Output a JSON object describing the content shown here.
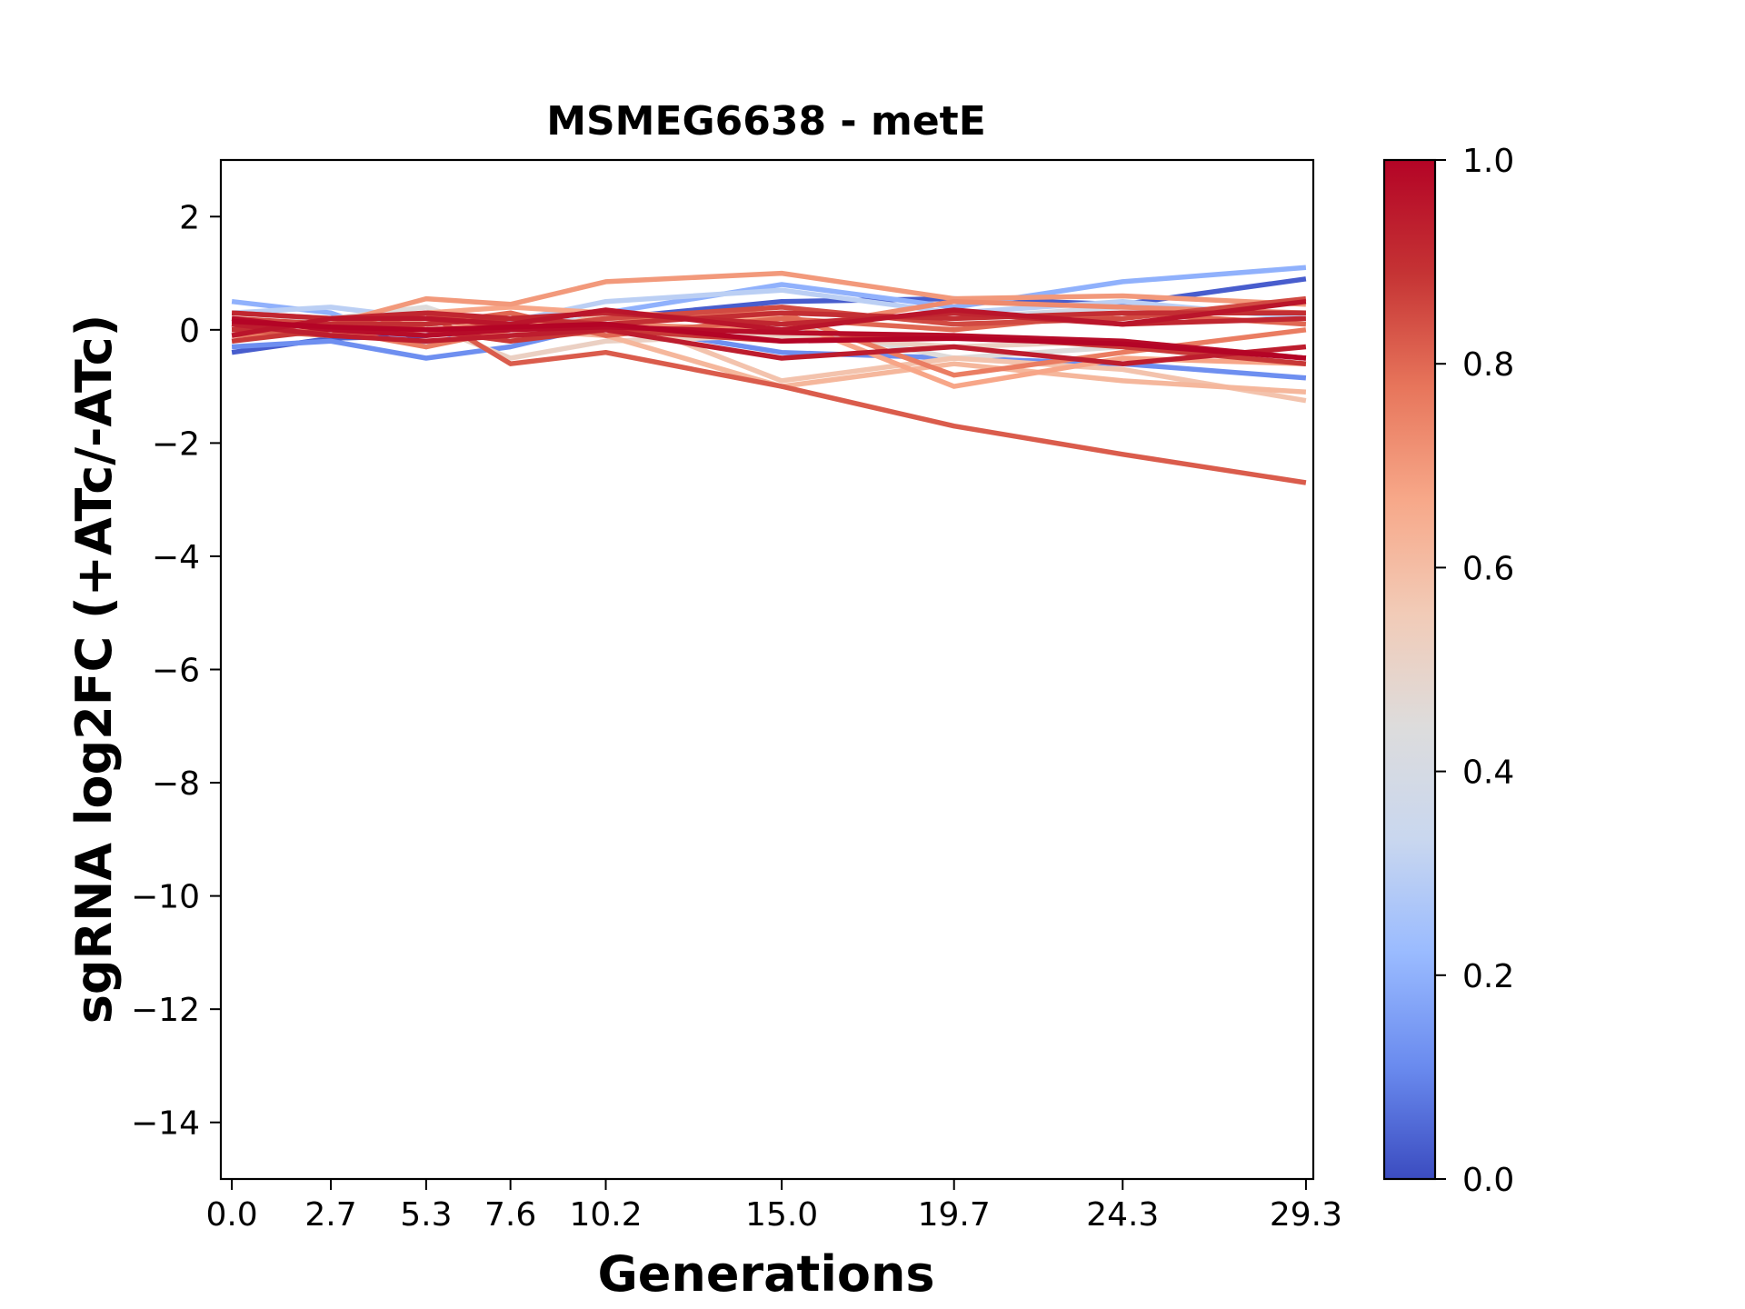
{
  "chart_data": {
    "type": "line",
    "title": "MSMEG6638 - metE",
    "xlabel": "Generations",
    "ylabel": "sgRNA log2FC (+ATc/-ATc)",
    "x": [
      0.0,
      2.7,
      5.3,
      7.6,
      10.2,
      15.0,
      19.7,
      24.3,
      29.3
    ],
    "x_tick_labels": [
      "0.0",
      "2.7",
      "5.3",
      "7.6",
      "10.2",
      "15.0",
      "19.7",
      "24.3",
      "29.3"
    ],
    "xlim": [
      -0.3,
      29.5
    ],
    "ylim": [
      -15,
      3
    ],
    "y_ticks": [
      2,
      0,
      -2,
      -4,
      -6,
      -8,
      -10,
      -12,
      -14
    ],
    "y_tick_labels": [
      "2",
      "0",
      "−2",
      "−4",
      "−6",
      "−8",
      "−10",
      "−12",
      "−14"
    ],
    "grid": false,
    "colormap": "coolwarm",
    "colorbar": {
      "range": [
        0.0,
        1.0
      ],
      "ticks": [
        0.0,
        0.2,
        0.4,
        0.6,
        0.8,
        1.0
      ],
      "tick_labels": [
        "0.0",
        "0.2",
        "0.4",
        "0.6",
        "0.8",
        "1.0"
      ]
    },
    "colormap_stops": [
      "#3b4cc0",
      "#6a8bef",
      "#9abbff",
      "#c9d7ef",
      "#dddcdc",
      "#f2cbb7",
      "#f7a889",
      "#e7755b",
      "#c53334",
      "#b40426"
    ],
    "series": [
      {
        "c": 0.03,
        "values": [
          -0.4,
          -0.15,
          -0.1,
          0.1,
          0.2,
          0.5,
          0.55,
          0.45,
          0.9
        ]
      },
      {
        "c": 0.12,
        "values": [
          -0.3,
          -0.2,
          -0.5,
          -0.3,
          0.1,
          -0.4,
          -0.5,
          -0.6,
          -0.85
        ]
      },
      {
        "c": 0.2,
        "values": [
          0.5,
          0.3,
          -0.3,
          0.2,
          0.3,
          0.8,
          0.4,
          0.85,
          1.1
        ]
      },
      {
        "c": 0.3,
        "values": [
          0.3,
          0.4,
          0.2,
          0.15,
          0.5,
          0.7,
          0.3,
          0.5,
          0.2
        ]
      },
      {
        "c": 0.38,
        "values": [
          0.2,
          0.0,
          0.3,
          0.1,
          0.2,
          0.3,
          0.2,
          0.4,
          0.3
        ]
      },
      {
        "c": 0.45,
        "values": [
          0.1,
          0.2,
          0.4,
          -0.1,
          0.0,
          0.1,
          -0.5,
          -0.3,
          -0.6
        ]
      },
      {
        "c": 0.52,
        "values": [
          -0.2,
          0.1,
          0.1,
          -0.5,
          -0.2,
          -0.1,
          -0.3,
          -0.2,
          -0.5
        ]
      },
      {
        "c": 0.58,
        "values": [
          0.0,
          -0.1,
          0.0,
          -0.2,
          0.3,
          -0.9,
          -0.5,
          -0.7,
          -1.25
        ]
      },
      {
        "c": 0.62,
        "values": [
          0.2,
          0.0,
          0.2,
          0.0,
          -0.1,
          -1.0,
          -0.6,
          -0.9,
          -1.1
        ]
      },
      {
        "c": 0.67,
        "values": [
          0.1,
          0.1,
          0.3,
          0.4,
          0.3,
          0.2,
          -1.0,
          -0.5,
          -0.6
        ]
      },
      {
        "c": 0.7,
        "values": [
          0.0,
          0.1,
          0.55,
          0.45,
          0.85,
          1.0,
          0.55,
          0.6,
          0.45
        ]
      },
      {
        "c": 0.73,
        "values": [
          0.3,
          0.2,
          0.0,
          0.1,
          0.1,
          0.0,
          0.5,
          0.4,
          0.3
        ]
      },
      {
        "c": 0.76,
        "values": [
          -0.1,
          0.0,
          -0.3,
          0.0,
          0.2,
          0.3,
          -0.8,
          -0.4,
          0.0
        ]
      },
      {
        "c": 0.8,
        "values": [
          0.1,
          -0.1,
          0.1,
          0.3,
          -0.1,
          0.2,
          0.0,
          0.3,
          0.1
        ]
      },
      {
        "c": 0.82,
        "values": [
          0.0,
          -0.1,
          0.3,
          -0.6,
          -0.4,
          -1.0,
          -1.7,
          -2.2,
          -2.7
        ]
      },
      {
        "c": 0.85,
        "values": [
          0.2,
          0.1,
          0.3,
          0.0,
          0.2,
          0.4,
          0.1,
          0.2,
          0.55
        ]
      },
      {
        "c": 0.88,
        "values": [
          -0.2,
          0.0,
          0.0,
          -0.2,
          0.0,
          -0.2,
          -0.1,
          -0.3,
          -0.6
        ]
      },
      {
        "c": 0.9,
        "values": [
          0.0,
          0.1,
          0.1,
          0.2,
          0.1,
          0.3,
          0.2,
          0.3,
          0.3
        ]
      },
      {
        "c": 0.92,
        "values": [
          0.3,
          0.2,
          0.3,
          0.2,
          0.3,
          0.1,
          0.3,
          0.1,
          0.2
        ]
      },
      {
        "c": 0.94,
        "values": [
          0.1,
          -0.1,
          -0.2,
          -0.1,
          0.0,
          -0.5,
          -0.3,
          -0.6,
          -0.3
        ]
      },
      {
        "c": 0.96,
        "values": [
          -0.1,
          0.2,
          0.2,
          0.1,
          0.35,
          0.0,
          0.35,
          0.1,
          0.5
        ]
      },
      {
        "c": 0.98,
        "values": [
          0.2,
          0.0,
          -0.1,
          0.0,
          0.05,
          -0.05,
          -0.1,
          -0.2,
          -0.5
        ]
      },
      {
        "c": 1.0,
        "values": [
          0.15,
          0.05,
          0.0,
          0.05,
          0.1,
          -0.2,
          -0.15,
          -0.25,
          -0.5
        ]
      }
    ]
  }
}
